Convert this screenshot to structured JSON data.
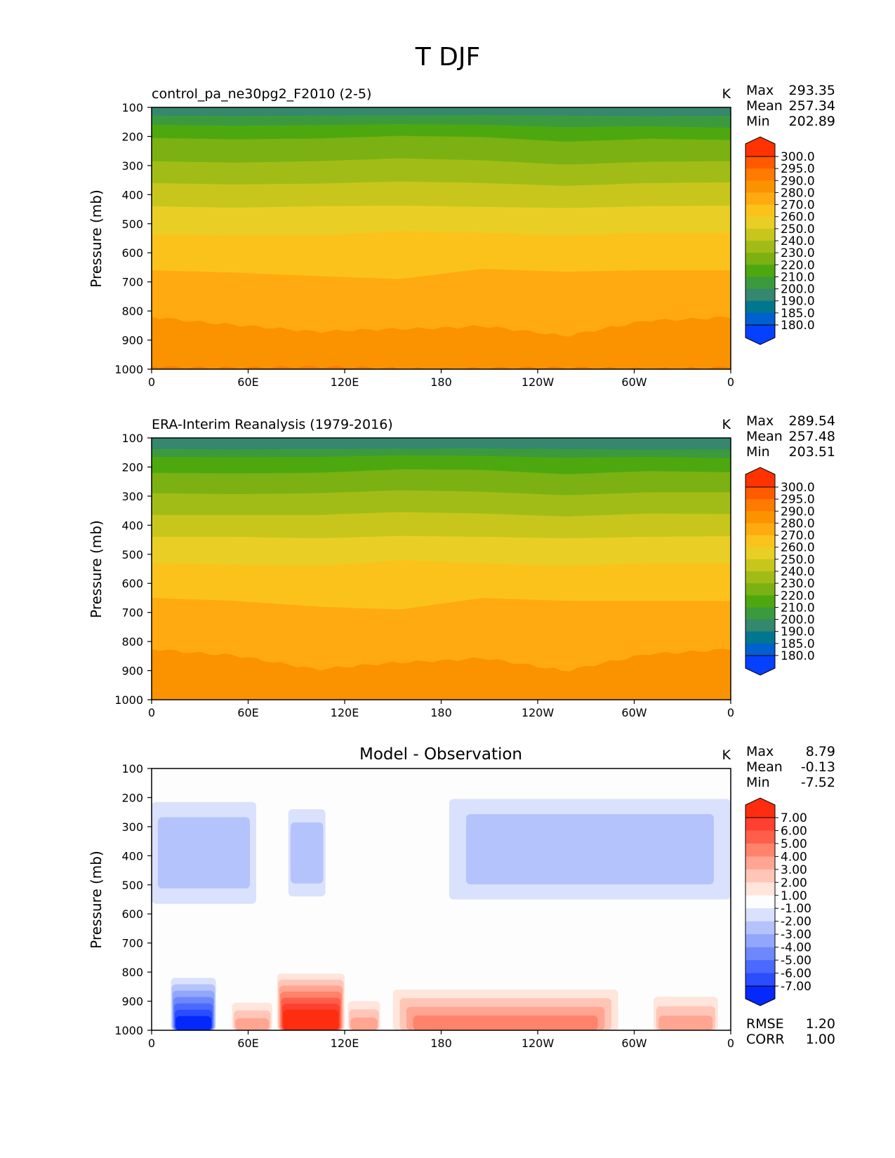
{
  "figure": {
    "title": "T DJF"
  },
  "chart_data": [
    {
      "type": "heatmap",
      "title": "control_pa_ne30pg2_F2010 (2-5)",
      "units": "K",
      "ylabel": "Pressure (mb)",
      "xlabel": "",
      "xticks": [
        "0",
        "60E",
        "120E",
        "180",
        "120W",
        "60W",
        "0"
      ],
      "yticks": [
        "100",
        "200",
        "300",
        "400",
        "500",
        "600",
        "700",
        "800",
        "900",
        "1000"
      ],
      "ylim": [
        1000,
        100
      ],
      "stats": {
        "labels": [
          "Max",
          "Mean",
          "Min"
        ],
        "values": [
          "293.35",
          "257.34",
          "202.89"
        ]
      },
      "colorbar": {
        "ticks": [
          "300.0",
          "295.0",
          "290.0",
          "280.0",
          "270.0",
          "260.0",
          "250.0",
          "240.0",
          "230.0",
          "220.0",
          "210.0",
          "200.0",
          "190.0",
          "185.0",
          "180.0"
        ],
        "colors": [
          "#ff3300",
          "#ff5a00",
          "#ff7a00",
          "#fb9300",
          "#ffaa10",
          "#fcc21c",
          "#e9cf25",
          "#c8c61d",
          "#a2bc17",
          "#7bb113",
          "#4da80f",
          "#3c9a3e",
          "#35876e",
          "#00768f",
          "#0060d0",
          "#0540ff"
        ]
      },
      "isotherms": [
        {
          "level": 200,
          "p": [
            128,
            129,
            128,
            127,
            126,
            128,
            130,
            129
          ]
        },
        {
          "level": 210,
          "p": [
            160,
            163,
            161,
            158,
            160,
            168,
            165,
            170
          ]
        },
        {
          "level": 220,
          "p": [
            205,
            210,
            207,
            198,
            202,
            218,
            208,
            212
          ]
        },
        {
          "level": 230,
          "p": [
            285,
            290,
            285,
            275,
            282,
            297,
            287,
            285
          ]
        },
        {
          "level": 240,
          "p": [
            360,
            365,
            362,
            355,
            360,
            370,
            360,
            358
          ]
        },
        {
          "level": 250,
          "p": [
            440,
            445,
            440,
            438,
            442,
            446,
            440,
            438
          ]
        },
        {
          "level": 260,
          "p": [
            535,
            540,
            540,
            525,
            530,
            540,
            530,
            530
          ]
        },
        {
          "level": 270,
          "p": [
            660,
            668,
            680,
            690,
            655,
            665,
            660,
            660
          ]
        },
        {
          "level": 280,
          "p": [
            820,
            845,
            875,
            860,
            850,
            890,
            830,
            820
          ]
        },
        {
          "level": 290,
          "p": [
            990,
            992,
            995,
            996,
            995,
            998,
            996,
            992
          ]
        }
      ]
    },
    {
      "type": "heatmap",
      "title": "ERA-Interim Reanalysis (1979-2016)",
      "units": "K",
      "ylabel": "Pressure (mb)",
      "xlabel": "",
      "xticks": [
        "0",
        "60E",
        "120E",
        "180",
        "120W",
        "60W",
        "0"
      ],
      "yticks": [
        "100",
        "200",
        "300",
        "400",
        "500",
        "600",
        "700",
        "800",
        "900",
        "1000"
      ],
      "ylim": [
        1000,
        100
      ],
      "stats": {
        "labels": [
          "Max",
          "Mean",
          "Min"
        ],
        "values": [
          "289.54",
          "257.48",
          "203.51"
        ]
      },
      "colorbar": {
        "ticks": [
          "300.0",
          "295.0",
          "290.0",
          "280.0",
          "270.0",
          "260.0",
          "250.0",
          "240.0",
          "230.0",
          "220.0",
          "210.0",
          "200.0",
          "190.0",
          "185.0",
          "180.0"
        ],
        "colors": [
          "#ff3300",
          "#ff5a00",
          "#ff7a00",
          "#fb9300",
          "#ffaa10",
          "#fcc21c",
          "#e9cf25",
          "#c8c61d",
          "#a2bc17",
          "#7bb113",
          "#4da80f",
          "#3c9a3e",
          "#35876e",
          "#00768f",
          "#0060d0",
          "#0540ff"
        ]
      },
      "isotherms": [
        {
          "level": 200,
          "p": [
            138,
            139,
            138,
            137,
            136,
            138,
            140,
            139
          ]
        },
        {
          "level": 210,
          "p": [
            165,
            166,
            165,
            160,
            162,
            168,
            165,
            170
          ]
        },
        {
          "level": 220,
          "p": [
            220,
            222,
            220,
            208,
            210,
            225,
            214,
            218
          ]
        },
        {
          "level": 230,
          "p": [
            290,
            293,
            290,
            280,
            285,
            297,
            287,
            287
          ]
        },
        {
          "level": 240,
          "p": [
            365,
            365,
            365,
            355,
            360,
            370,
            360,
            362
          ]
        },
        {
          "level": 250,
          "p": [
            440,
            440,
            445,
            437,
            440,
            445,
            440,
            438
          ]
        },
        {
          "level": 260,
          "p": [
            530,
            535,
            540,
            520,
            530,
            540,
            530,
            530
          ]
        },
        {
          "level": 270,
          "p": [
            650,
            660,
            680,
            690,
            650,
            660,
            660,
            660
          ]
        },
        {
          "level": 280,
          "p": [
            825,
            845,
            900,
            870,
            855,
            905,
            840,
            825
          ]
        }
      ]
    },
    {
      "type": "heatmap",
      "title": "Model - Observation",
      "units": "K",
      "ylabel": "Pressure (mb)",
      "xlabel": "",
      "xticks": [
        "0",
        "60E",
        "120E",
        "180",
        "120W",
        "60W",
        "0"
      ],
      "yticks": [
        "100",
        "200",
        "300",
        "400",
        "500",
        "600",
        "700",
        "800",
        "900",
        "1000"
      ],
      "ylim": [
        1000,
        100
      ],
      "stats": {
        "labels": [
          "Max",
          "Mean",
          "Min"
        ],
        "values": [
          "8.79",
          "-0.13",
          "-7.52"
        ]
      },
      "metrics": {
        "labels": [
          "RMSE",
          "CORR"
        ],
        "values": [
          "1.20",
          "1.00"
        ]
      },
      "colorbar": {
        "ticks": [
          "7.00",
          "6.00",
          "5.00",
          "4.00",
          "3.00",
          "2.00",
          "1.00",
          "-1.00",
          "-2.00",
          "-3.00",
          "-4.00",
          "-5.00",
          "-6.00",
          "-7.00"
        ],
        "colors": [
          "#ff2d0f",
          "#ff4030",
          "#ff5f4a",
          "#ff836b",
          "#ffa591",
          "#ffc6b7",
          "#ffe5dc",
          "#fdfdfd",
          "#d9e1fc",
          "#b5c3fc",
          "#92a6fc",
          "#6e88fc",
          "#4b6afd",
          "#2a4dfd",
          "#0528fd"
        ]
      },
      "anomalies": [
        {
          "sign": "neg",
          "region": "upper troposphere 0-60E",
          "lon_range": [
            0,
            65
          ],
          "p_range": [
            215,
            565
          ],
          "value": -1.5
        },
        {
          "sign": "neg",
          "region": "upper troposphere 85-105E",
          "lon_range": [
            85,
            108
          ],
          "p_range": [
            240,
            540
          ],
          "value": -1.5
        },
        {
          "sign": "neg",
          "region": "upper troposphere 175W-0",
          "lon_range": [
            185,
            360
          ],
          "p_range": [
            205,
            550
          ],
          "value": -1.5
        },
        {
          "sign": "neg",
          "region": "surface 20-35E",
          "lon_range": [
            12,
            40
          ],
          "p_range": [
            820,
            1000
          ],
          "value": -7.0
        },
        {
          "sign": "pos",
          "region": "surface 85-115E",
          "lon_range": [
            78,
            120
          ],
          "p_range": [
            805,
            1000
          ],
          "value": 8.0
        },
        {
          "sign": "pos",
          "region": "surface 55-70E",
          "lon_range": [
            50,
            75
          ],
          "p_range": [
            905,
            1000
          ],
          "value": 3.0
        },
        {
          "sign": "pos",
          "region": "surface 125-140E",
          "lon_range": [
            122,
            142
          ],
          "p_range": [
            900,
            1000
          ],
          "value": 3.0
        },
        {
          "sign": "pos",
          "region": "surface 150E-70W",
          "lon_range": [
            150,
            290
          ],
          "p_range": [
            860,
            1000
          ],
          "value": 4.0
        },
        {
          "sign": "pos",
          "region": "surface 45W-10W",
          "lon_range": [
            312,
            352
          ],
          "p_range": [
            885,
            1000
          ],
          "value": 3.0
        }
      ]
    }
  ]
}
